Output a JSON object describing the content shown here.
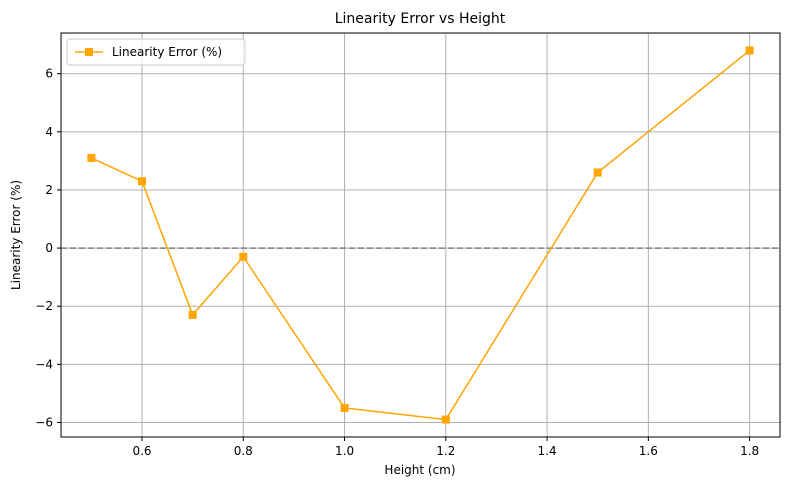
{
  "chart_data": {
    "type": "line",
    "title": "Linearity Error vs Height",
    "xlabel": "Height (cm)",
    "ylabel": "Linearity Error (%)",
    "xlim": [
      0.44,
      1.86
    ],
    "ylim": [
      -6.5,
      7.4
    ],
    "xticks": [
      0.6,
      0.8,
      1.0,
      1.2,
      1.4,
      1.6,
      1.8
    ],
    "xtick_labels": [
      "0.6",
      "0.8",
      "1.0",
      "1.2",
      "1.4",
      "1.6",
      "1.8"
    ],
    "yticks": [
      -6,
      -4,
      -2,
      0,
      2,
      4,
      6
    ],
    "ytick_labels": [
      "−6",
      "−4",
      "−2",
      "0",
      "2",
      "4",
      "6"
    ],
    "grid": true,
    "legend_position": "top-left",
    "reference_line": {
      "y": 0,
      "style": "dashed",
      "color": "#808080"
    },
    "series": [
      {
        "name": "Linearity Error (%)",
        "color": "#FFA500",
        "marker": "square",
        "x": [
          0.5,
          0.6,
          0.7,
          0.8,
          1.0,
          1.2,
          1.5,
          1.8
        ],
        "y": [
          3.1,
          2.3,
          -2.3,
          -0.3,
          -5.5,
          -5.9,
          2.6,
          6.8
        ]
      }
    ]
  }
}
